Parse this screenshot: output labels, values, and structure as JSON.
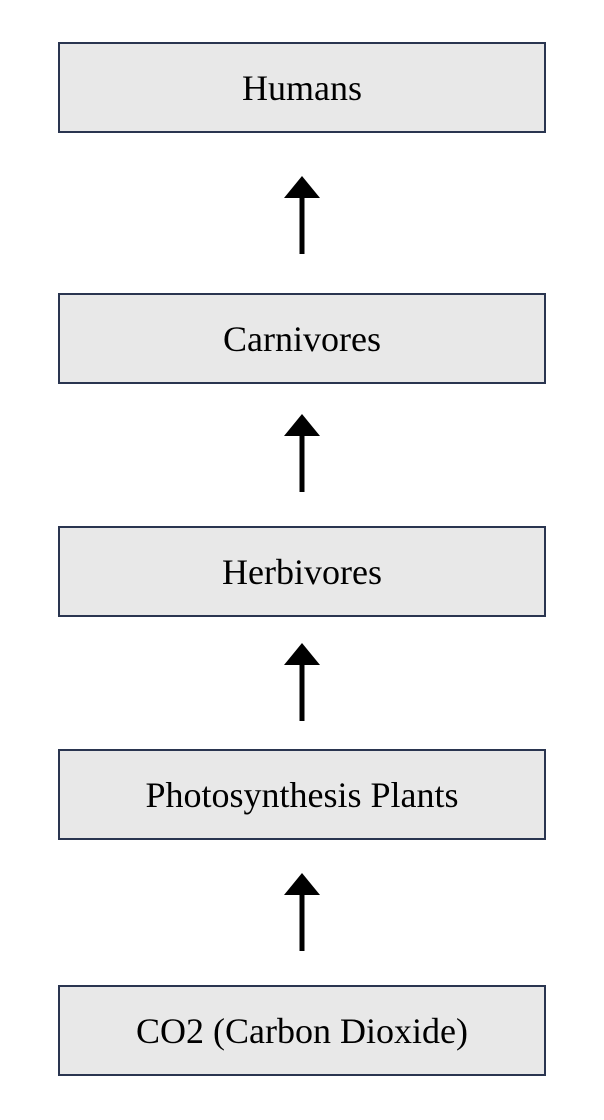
{
  "diagram": {
    "nodes": [
      {
        "id": "humans",
        "label": "Humans"
      },
      {
        "id": "carnivores",
        "label": "Carnivores"
      },
      {
        "id": "herbivores",
        "label": "Herbivores"
      },
      {
        "id": "plants",
        "label": "Photosynthesis Plants"
      },
      {
        "id": "co2",
        "label": "CO2 (Carbon Dioxide)"
      }
    ],
    "edges": [
      {
        "from": "co2",
        "to": "plants"
      },
      {
        "from": "plants",
        "to": "herbivores"
      },
      {
        "from": "herbivores",
        "to": "carnivores"
      },
      {
        "from": "carnivores",
        "to": "humans"
      }
    ],
    "colors": {
      "box_fill": "#e8e8e8",
      "box_border": "#2a3550",
      "arrow": "#000000"
    }
  }
}
